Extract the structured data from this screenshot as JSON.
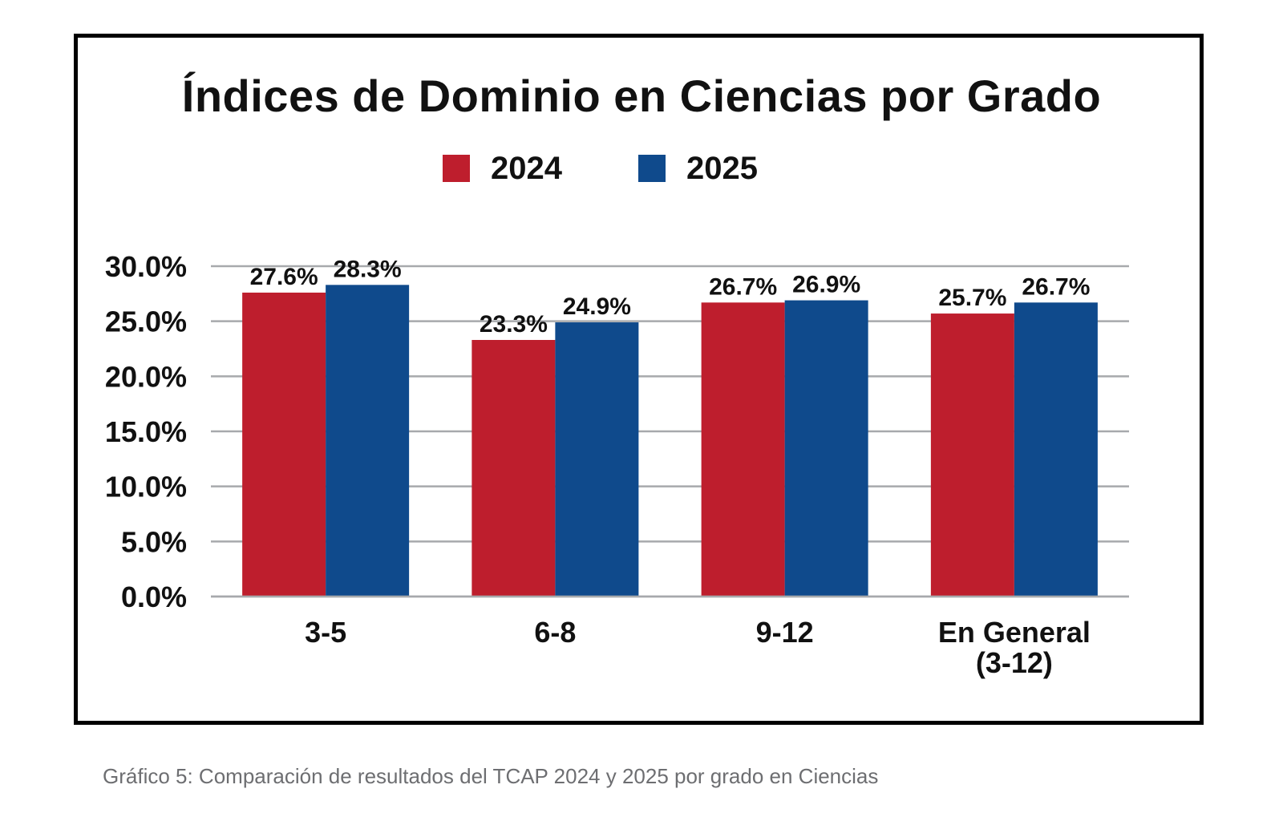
{
  "chart_data": {
    "type": "bar",
    "title": "Índices de Dominio en Ciencias por Grado",
    "categories": [
      "3-5",
      "6-8",
      "9-12",
      "En General\n(3-12)"
    ],
    "category_lines": [
      [
        "3-5"
      ],
      [
        "6-8"
      ],
      [
        "9-12"
      ],
      [
        "En General",
        "(3-12)"
      ]
    ],
    "series": [
      {
        "name": "2024",
        "color": "#be1e2d",
        "values": [
          27.6,
          23.3,
          26.7,
          25.7
        ],
        "labels": [
          "27.6%",
          "23.3%",
          "26.7%",
          "25.7%"
        ]
      },
      {
        "name": "2025",
        "color": "#0f4a8c",
        "values": [
          28.3,
          24.9,
          26.9,
          26.7
        ],
        "labels": [
          "28.3%",
          "24.9%",
          "26.9%",
          "26.7%"
        ]
      }
    ],
    "ylim": [
      0,
      30
    ],
    "yticks": [
      0,
      5,
      10,
      15,
      20,
      25,
      30
    ],
    "ytick_labels": [
      "0.0%",
      "5.0%",
      "10.0%",
      "15.0%",
      "20.0%",
      "25.0%",
      "30.0%"
    ],
    "grid": true,
    "legend_position": "top-center",
    "xlabel": "",
    "ylabel": ""
  },
  "caption": "Gráfico 5: Comparación de resultados del TCAP 2024 y 2025 por grado en Ciencias"
}
